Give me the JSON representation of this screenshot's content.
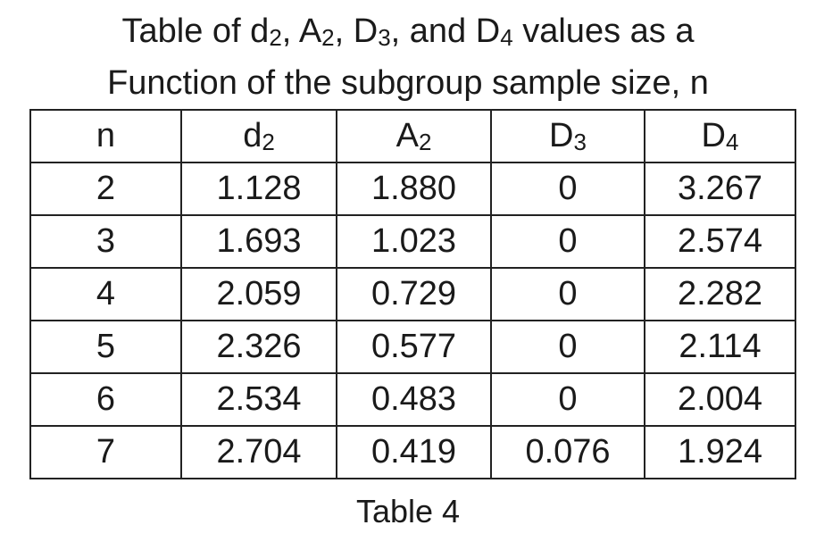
{
  "title": [
    {
      "text": "Table of d"
    },
    {
      "sub": "2"
    },
    {
      "text": ", A"
    },
    {
      "sub": "2"
    },
    {
      "text": ", D"
    },
    {
      "sub": "3"
    },
    {
      "text": ", and D"
    },
    {
      "sub": "4"
    },
    {
      "text": " values as a Function of the subgroup sample size, n"
    }
  ],
  "table": {
    "header": [
      {
        "base": "n"
      },
      {
        "base": "d",
        "sub": "2"
      },
      {
        "base": "A",
        "sub": "2"
      },
      {
        "base": "D",
        "sub": "3"
      },
      {
        "base": "D",
        "sub": "4"
      }
    ],
    "rows": [
      [
        "2",
        "1.128",
        "1.880",
        "0",
        "3.267"
      ],
      [
        "3",
        "1.693",
        "1.023",
        "0",
        "2.574"
      ],
      [
        "4",
        "2.059",
        "0.729",
        "0",
        "2.282"
      ],
      [
        "5",
        "2.326",
        "0.577",
        "0",
        "2.114"
      ],
      [
        "6",
        "2.534",
        "0.483",
        "0",
        "2.004"
      ],
      [
        "7",
        "2.704",
        "0.419",
        "0.076",
        "1.924"
      ]
    ]
  },
  "caption": "Table 4"
}
